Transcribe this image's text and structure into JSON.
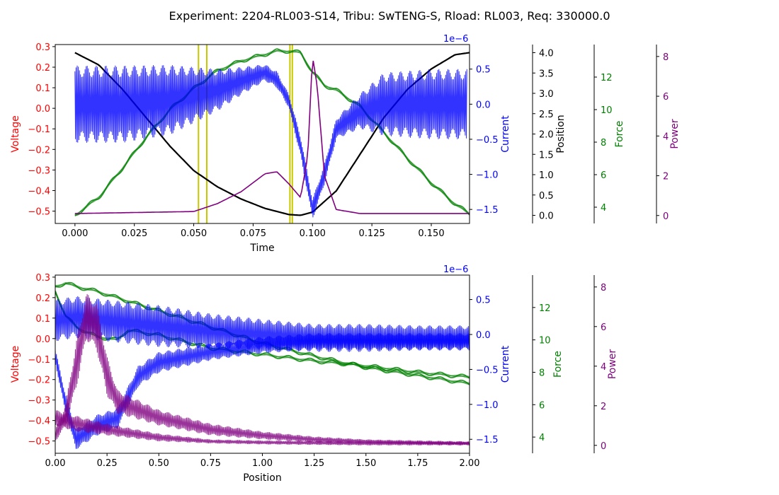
{
  "figure_title": "Experiment: 2204-RL003-S14, Tribu: SwTENG-S, Rload: RL003, Req: 330000.0",
  "colors": {
    "voltage": "#ff0000",
    "current": "#0000ff",
    "position": "#000000",
    "force": "#008000",
    "power": "#800080",
    "marker": "#c8c800"
  },
  "chart_data": [
    {
      "type": "line",
      "name": "top",
      "xlabel": "Time",
      "xlim": [
        -0.0083,
        0.1661
      ],
      "xticks": [
        "0.000",
        "0.025",
        "0.050",
        "0.075",
        "0.100",
        "0.125",
        "0.150"
      ],
      "xtick_values": [
        0.0,
        0.025,
        0.05,
        0.075,
        0.1,
        0.125,
        0.15
      ],
      "axes": {
        "voltage": {
          "label": "Voltage",
          "lim": [
            -0.56,
            0.31
          ],
          "ticks": [
            "0.3",
            "0.2",
            "0.1",
            "0.0",
            "−0.1",
            "−0.2",
            "−0.3",
            "−0.4",
            "−0.5"
          ],
          "tick_values": [
            0.3,
            0.2,
            0.1,
            0.0,
            -0.1,
            -0.2,
            -0.3,
            -0.4,
            -0.5
          ]
        },
        "current": {
          "label": "Current",
          "offset_text": "1e−6",
          "lim": [
            -1.7,
            0.85
          ],
          "ticks": [
            "0.5",
            "0.0",
            "−0.5",
            "−1.0",
            "−1.5"
          ],
          "tick_values": [
            0.5,
            0.0,
            -0.5,
            -1.0,
            -1.5
          ]
        },
        "position": {
          "label": "Position",
          "lim": [
            -0.2,
            4.2
          ],
          "ticks": [
            "4.0",
            "3.5",
            "3.0",
            "2.5",
            "2.0",
            "1.5",
            "1.0",
            "0.5",
            "0.0"
          ],
          "tick_values": [
            4.0,
            3.5,
            3.0,
            2.5,
            2.0,
            1.5,
            1.0,
            0.5,
            0.0
          ]
        },
        "force": {
          "label": "Force",
          "lim": [
            3.0,
            14.0
          ],
          "ticks": [
            "12",
            "10",
            "8",
            "6",
            "4"
          ],
          "tick_values": [
            12,
            10,
            8,
            6,
            4
          ]
        },
        "power": {
          "label": "Power",
          "lim": [
            -0.4,
            8.6
          ],
          "ticks": [
            "8",
            "6",
            "4",
            "2",
            "0"
          ],
          "tick_values": [
            8,
            6,
            4,
            2,
            0
          ]
        }
      },
      "vlines_time": [
        0.052,
        0.0555,
        0.0905,
        0.0915
      ],
      "series": [
        {
          "axis": "position",
          "x": [
            0.0,
            0.01,
            0.02,
            0.03,
            0.04,
            0.05,
            0.06,
            0.07,
            0.08,
            0.09,
            0.095,
            0.1,
            0.11,
            0.12,
            0.13,
            0.14,
            0.15,
            0.16,
            0.166
          ],
          "y": [
            4.0,
            3.7,
            3.1,
            2.4,
            1.7,
            1.1,
            0.7,
            0.4,
            0.17,
            0.02,
            0.0,
            0.08,
            0.6,
            1.5,
            2.4,
            3.1,
            3.6,
            3.95,
            4.0
          ]
        },
        {
          "axis": "force",
          "x": [
            0.0,
            0.01,
            0.02,
            0.03,
            0.04,
            0.05,
            0.06,
            0.07,
            0.08,
            0.085,
            0.09,
            0.095,
            0.1,
            0.105,
            0.11,
            0.12,
            0.13,
            0.14,
            0.15,
            0.16,
            0.166
          ],
          "y": [
            3.5,
            4.6,
            6.4,
            8.3,
            10.0,
            11.3,
            12.4,
            13.0,
            13.4,
            13.6,
            13.6,
            13.5,
            12.3,
            11.5,
            11.2,
            10.2,
            8.6,
            7.0,
            5.5,
            4.2,
            3.6
          ]
        },
        {
          "axis": "current",
          "x": [
            0.0,
            0.02,
            0.04,
            0.06,
            0.07,
            0.08,
            0.085,
            0.09,
            0.095,
            0.1,
            0.105,
            0.11,
            0.12,
            0.13,
            0.15,
            0.165
          ],
          "y": [
            0.0,
            0.0,
            0.06,
            0.2,
            0.33,
            0.45,
            0.35,
            0.05,
            -0.6,
            -1.5,
            -1.0,
            -0.35,
            -0.1,
            0.0,
            0.0,
            0.0
          ],
          "amplitude": [
            0.55,
            0.55,
            0.5,
            0.3,
            0.2,
            0.12,
            0.12,
            0.1,
            0.15,
            0.15,
            0.15,
            0.15,
            0.25,
            0.45,
            0.5,
            0.5
          ]
        },
        {
          "axis": "power",
          "x": [
            0.0,
            0.05,
            0.06,
            0.07,
            0.08,
            0.085,
            0.09,
            0.095,
            0.098,
            0.1,
            0.102,
            0.105,
            0.11,
            0.12,
            0.166
          ],
          "y": [
            0.1,
            0.2,
            0.6,
            1.2,
            2.1,
            2.2,
            1.6,
            0.9,
            3.0,
            8.0,
            6.5,
            2.0,
            0.3,
            0.1,
            0.1
          ]
        }
      ]
    },
    {
      "type": "line",
      "name": "bottom",
      "xlabel": "Position",
      "xlim": [
        0.0,
        2.0
      ],
      "xticks": [
        "0.00",
        "0.25",
        "0.50",
        "0.75",
        "1.00",
        "1.25",
        "1.50",
        "1.75",
        "2.00"
      ],
      "xtick_values": [
        0.0,
        0.25,
        0.5,
        0.75,
        1.0,
        1.25,
        1.5,
        1.75,
        2.0
      ],
      "axes": {
        "voltage": {
          "label": "Voltage",
          "lim": [
            -0.56,
            0.31
          ],
          "ticks": [
            "0.3",
            "0.2",
            "0.1",
            "0.0",
            "−0.1",
            "−0.2",
            "−0.3",
            "−0.4",
            "−0.5"
          ],
          "tick_values": [
            0.3,
            0.2,
            0.1,
            0.0,
            -0.1,
            -0.2,
            -0.3,
            -0.4,
            -0.5
          ]
        },
        "current": {
          "label": "Current",
          "offset_text": "1e−6",
          "lim": [
            -1.7,
            0.85
          ],
          "ticks": [
            "0.5",
            "0.0",
            "−0.5",
            "−1.0",
            "−1.5"
          ],
          "tick_values": [
            0.5,
            0.0,
            -0.5,
            -1.0,
            -1.5
          ]
        },
        "force": {
          "label": "Force",
          "lim": [
            3.0,
            14.0
          ],
          "ticks": [
            "12",
            "10",
            "8",
            "6",
            "4"
          ],
          "tick_values": [
            12,
            10,
            8,
            6,
            4
          ]
        },
        "power": {
          "label": "Power",
          "lim": [
            -0.4,
            8.6
          ],
          "ticks": [
            "8",
            "6",
            "4",
            "2",
            "0"
          ],
          "tick_values": [
            8,
            6,
            4,
            2,
            0
          ]
        }
      },
      "series": [
        {
          "axis": "force",
          "x": [
            0.0,
            0.05,
            0.1,
            0.2,
            0.3,
            0.5,
            0.75,
            1.0,
            1.25,
            1.5,
            1.75,
            2.0
          ],
          "y": [
            13.3,
            13.5,
            13.3,
            13.0,
            12.6,
            11.8,
            10.8,
            9.8,
            9.0,
            8.3,
            7.8,
            7.3
          ]
        },
        {
          "axis": "force",
          "x": [
            0.0,
            0.05,
            0.1,
            0.2,
            0.3,
            0.35,
            0.5,
            0.75,
            1.0,
            1.25,
            1.5,
            1.75,
            2.0
          ],
          "y": [
            13.0,
            11.5,
            10.8,
            10.2,
            10.0,
            10.6,
            10.3,
            9.5,
            9.1,
            8.7,
            8.4,
            8.0,
            7.7
          ]
        },
        {
          "axis": "current",
          "x": [
            0.0,
            0.1,
            0.25,
            0.5,
            0.75,
            1.0,
            1.25,
            1.5,
            1.75,
            2.0
          ],
          "y": [
            0.2,
            0.25,
            0.2,
            0.12,
            0.05,
            0.0,
            -0.05,
            -0.05,
            -0.05,
            -0.05
          ],
          "amplitude": [
            0.3,
            0.3,
            0.3,
            0.3,
            0.25,
            0.22,
            0.2,
            0.2,
            0.18,
            0.18
          ]
        },
        {
          "axis": "current",
          "x": [
            0.0,
            0.05,
            0.1,
            0.2,
            0.3,
            0.4,
            0.5,
            0.75,
            1.0,
            1.25,
            1.5,
            1.75,
            2.0
          ],
          "y": [
            -0.3,
            -1.0,
            -1.5,
            -1.3,
            -1.2,
            -0.6,
            -0.4,
            -0.25,
            -0.15,
            -0.1,
            -0.1,
            -0.1,
            -0.1
          ],
          "amplitude": [
            0.1,
            0.15,
            0.15,
            0.15,
            0.15,
            0.15,
            0.15,
            0.12,
            0.12,
            0.12,
            0.12,
            0.12,
            0.12
          ]
        },
        {
          "axis": "power",
          "x": [
            0.0,
            0.05,
            0.1,
            0.15,
            0.2,
            0.25,
            0.3,
            0.4,
            0.5,
            0.75,
            1.0,
            1.25,
            1.5,
            1.75,
            2.0
          ],
          "y": [
            0.5,
            1.5,
            4.0,
            6.5,
            6.0,
            3.5,
            2.2,
            1.8,
            1.4,
            0.8,
            0.5,
            0.3,
            0.2,
            0.15,
            0.1
          ],
          "amplitude": [
            0.3,
            0.6,
            1.2,
            1.2,
            1.2,
            1.0,
            0.6,
            0.5,
            0.4,
            0.3,
            0.2,
            0.15,
            0.1,
            0.1,
            0.1
          ]
        },
        {
          "axis": "power",
          "x": [
            0.0,
            0.1,
            0.25,
            0.5,
            0.75,
            1.0,
            1.5,
            2.0
          ],
          "y": [
            1.4,
            1.1,
            0.8,
            0.4,
            0.2,
            0.15,
            0.1,
            0.1
          ],
          "amplitude": [
            0.4,
            0.4,
            0.3,
            0.2,
            0.1,
            0.1,
            0.1,
            0.1
          ]
        }
      ]
    }
  ]
}
